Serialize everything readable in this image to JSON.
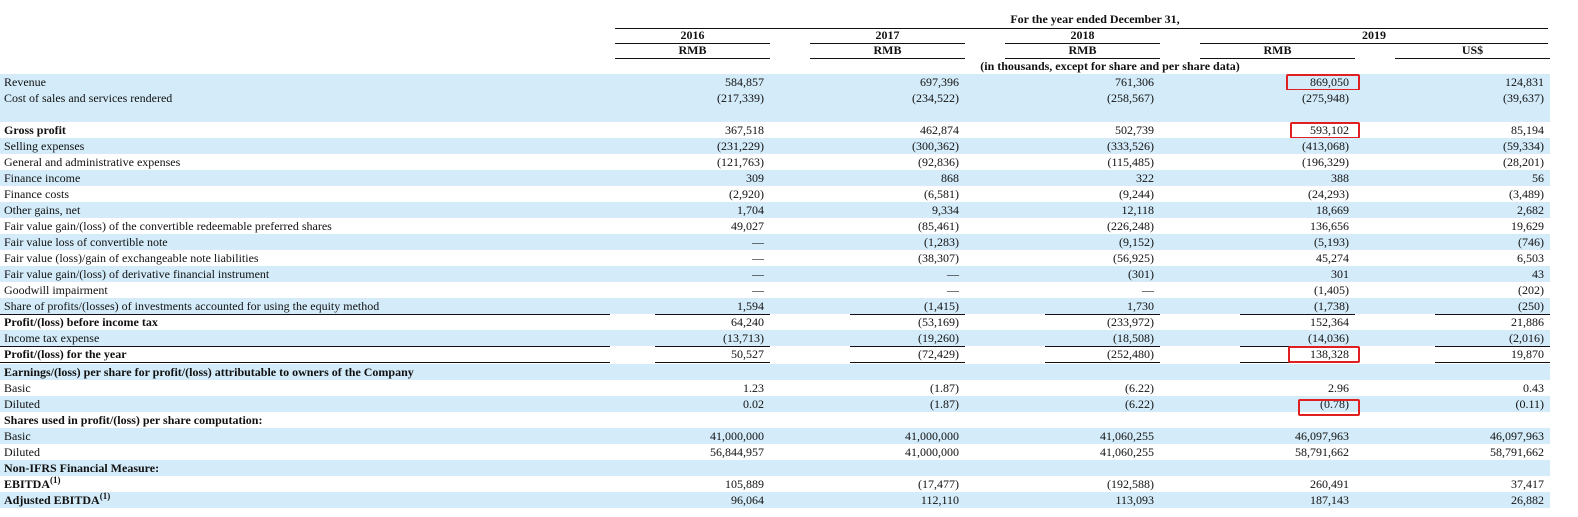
{
  "header": {
    "title": "For the year ended December 31,",
    "years": [
      "2016",
      "2017",
      "2018",
      "2019"
    ],
    "currencies": [
      "RMB",
      "RMB",
      "RMB",
      "RMB",
      "US$"
    ],
    "note": "(in thousands, except for share and per share data)"
  },
  "rows": [
    {
      "label": "Revenue",
      "values": [
        "584,857",
        "697,396",
        "761,306",
        "869,050",
        "124,831"
      ]
    },
    {
      "label": "Cost of sales and services rendered",
      "values": [
        "(217,339)",
        "(234,522)",
        "(258,567)",
        "(275,948)",
        "(39,637)"
      ]
    },
    {
      "label": "Gross profit",
      "values": [
        "367,518",
        "462,874",
        "502,739",
        "593,102",
        "85,194"
      ]
    },
    {
      "label": "Selling expenses",
      "values": [
        "(231,229)",
        "(300,362)",
        "(333,526)",
        "(413,068)",
        "(59,334)"
      ]
    },
    {
      "label": "General and administrative expenses",
      "values": [
        "(121,763)",
        "(92,836)",
        "(115,485)",
        "(196,329)",
        "(28,201)"
      ]
    },
    {
      "label": "Finance income",
      "values": [
        "309",
        "868",
        "322",
        "388",
        "56"
      ]
    },
    {
      "label": "Finance costs",
      "values": [
        "(2,920)",
        "(6,581)",
        "(9,244)",
        "(24,293)",
        "(3,489)"
      ]
    },
    {
      "label": "Other gains, net",
      "values": [
        "1,704",
        "9,334",
        "12,118",
        "18,669",
        "2,682"
      ]
    },
    {
      "label": "Fair value gain/(loss) of the convertible redeemable preferred shares",
      "values": [
        "49,027",
        "(85,461)",
        "(226,248)",
        "136,656",
        "19,629"
      ]
    },
    {
      "label": "Fair value loss of convertible note",
      "values": [
        "—",
        "(1,283)",
        "(9,152)",
        "(5,193)",
        "(746)"
      ]
    },
    {
      "label": "Fair value (loss)/gain of exchangeable note liabilities",
      "values": [
        "—",
        "(38,307)",
        "(56,925)",
        "45,274",
        "6,503"
      ]
    },
    {
      "label": "Fair value gain/(loss) of derivative financial instrument",
      "values": [
        "—",
        "—",
        "(301)",
        "301",
        "43"
      ]
    },
    {
      "label": "Goodwill impairment",
      "values": [
        "—",
        "—",
        "—",
        "(1,405)",
        "(202)"
      ]
    },
    {
      "label": "Share of profits/(losses) of investments accounted for using the equity method",
      "values": [
        "1,594",
        "(1,415)",
        "1,730",
        "(1,738)",
        "(250)"
      ]
    },
    {
      "label": "Profit/(loss) before income tax",
      "values": [
        "64,240",
        "(53,169)",
        "(233,972)",
        "152,364",
        "21,886"
      ]
    },
    {
      "label": "Income tax expense",
      "values": [
        "(13,713)",
        "(19,260)",
        "(18,508)",
        "(14,036)",
        "(2,016)"
      ]
    },
    {
      "label": "Profit/(loss) for the year",
      "values": [
        "50,527",
        "(72,429)",
        "(252,480)",
        "138,328",
        "19,870"
      ]
    },
    {
      "label": "Earnings/(loss) per share for profit/(loss) attributable to owners of the Company"
    },
    {
      "label": "Basic",
      "values": [
        "1.23",
        "(1.87)",
        "(6.22)",
        "2.96",
        "0.43"
      ]
    },
    {
      "label": "Diluted",
      "values": [
        "0.02",
        "(1.87)",
        "(6.22)",
        "(0.78)",
        "(0.11)"
      ]
    },
    {
      "label": "Shares used in profit/(loss) per share computation:"
    },
    {
      "label": "Basic",
      "values": [
        "41,000,000",
        "41,000,000",
        "41,060,255",
        "46,097,963",
        "46,097,963"
      ]
    },
    {
      "label": "Diluted",
      "values": [
        "56,844,957",
        "41,000,000",
        "41,060,255",
        "58,791,662",
        "58,791,662"
      ]
    },
    {
      "label": "Non-IFRS Financial Measure:"
    },
    {
      "label": "EBITDA",
      "note": "(1)",
      "values": [
        "105,889",
        "(17,477)",
        "(192,588)",
        "260,491",
        "37,417"
      ]
    },
    {
      "label": "Adjusted EBITDA",
      "note": "(1)",
      "values": [
        "96,064",
        "112,110",
        "113,093",
        "187,143",
        "26,882"
      ]
    }
  ]
}
